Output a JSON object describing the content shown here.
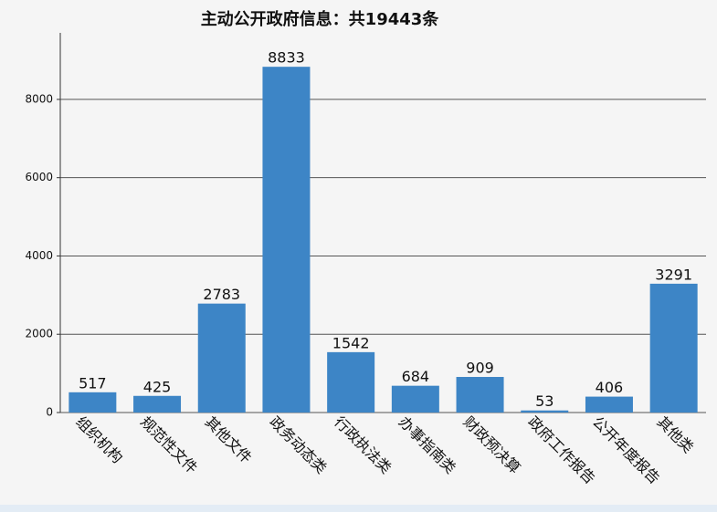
{
  "chart_data": {
    "type": "bar",
    "title": "主动公开政府信息：共19443条",
    "categories": [
      "组织机构",
      "规范性文件",
      "其他文件",
      "政务动态类",
      "行政执法类",
      "办事指南类",
      "财政预决算",
      "政府工作报告",
      "公开年度报告",
      "其他类"
    ],
    "values": [
      517,
      425,
      2783,
      8833,
      1542,
      684,
      909,
      53,
      406,
      3291
    ],
    "color": "#3d85c6",
    "ylim": [
      0,
      9700
    ],
    "yticks": [
      0,
      2000,
      4000,
      6000,
      8000
    ],
    "grid": true
  }
}
